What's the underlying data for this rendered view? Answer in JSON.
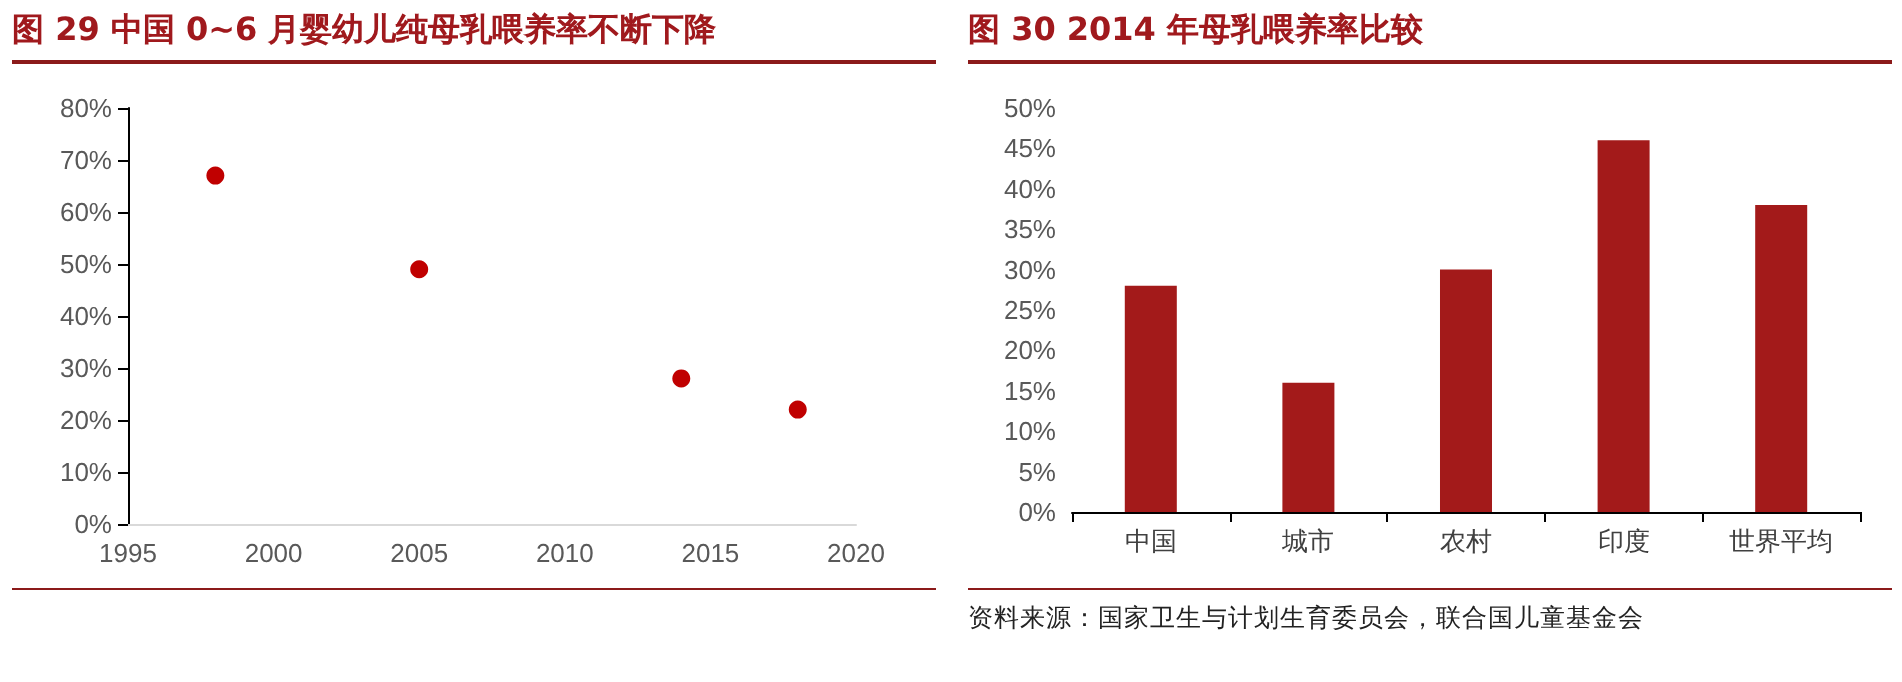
{
  "chart_data": [
    {
      "type": "scatter",
      "title": "图 29  中国 0~6 月婴幼儿纯母乳喂养率不断下降",
      "x": [
        1998,
        2005,
        2014,
        2018
      ],
      "series": [
        {
          "color": "#c00000",
          "values": [
            67,
            49,
            28,
            22
          ]
        }
      ],
      "xlim": [
        1995,
        2020
      ],
      "xticks": [
        1995,
        2000,
        2005,
        2010,
        2015,
        2020
      ],
      "ylim": [
        0,
        80
      ],
      "yticks": [
        {
          "value": 0,
          "label": "0%"
        },
        {
          "value": 10,
          "label": "10%"
        },
        {
          "value": 20,
          "label": "20%"
        },
        {
          "value": 30,
          "label": "30%"
        },
        {
          "value": 40,
          "label": "40%"
        },
        {
          "value": 50,
          "label": "50%"
        },
        {
          "value": 60,
          "label": "60%"
        },
        {
          "value": 70,
          "label": "70%"
        },
        {
          "value": 80,
          "label": "80%"
        }
      ],
      "marker": "circle",
      "grid": false
    },
    {
      "type": "bar",
      "title": "图 30 2014 年母乳喂养率比较",
      "categories": [
        "中国",
        "城市",
        "农村",
        "印度",
        "世界平均"
      ],
      "series": [
        {
          "color": "#a31a1a",
          "values": [
            28,
            16,
            30,
            46,
            38
          ]
        }
      ],
      "ylim": [
        0,
        50
      ],
      "yticks": [
        {
          "value": 0,
          "label": "0%"
        },
        {
          "value": 5,
          "label": "5%"
        },
        {
          "value": 10,
          "label": "10%"
        },
        {
          "value": 15,
          "label": "15%"
        },
        {
          "value": 20,
          "label": "20%"
        },
        {
          "value": 25,
          "label": "25%"
        },
        {
          "value": 30,
          "label": "30%"
        },
        {
          "value": 35,
          "label": "35%"
        },
        {
          "value": 40,
          "label": "40%"
        },
        {
          "value": 45,
          "label": "45%"
        },
        {
          "value": 50,
          "label": "50%"
        }
      ],
      "grid": false,
      "annotations": [
        "资料来源：国家卫生与计划生育委员会，联合国儿童基金会"
      ]
    }
  ]
}
